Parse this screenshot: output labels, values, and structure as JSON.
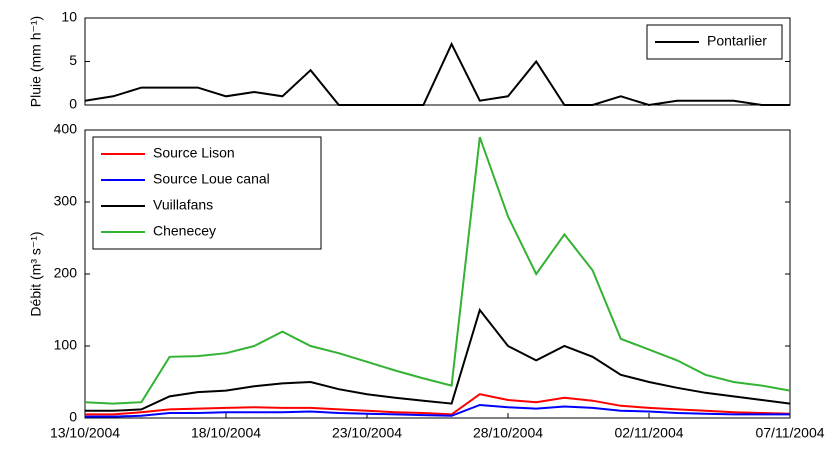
{
  "chart_data": [
    {
      "type": "line",
      "ylabel": "Pluie (mm h⁻¹)",
      "x": [
        "2004-10-13",
        "2004-10-14",
        "2004-10-15",
        "2004-10-16",
        "2004-10-17",
        "2004-10-18",
        "2004-10-19",
        "2004-10-20",
        "2004-10-21",
        "2004-10-22",
        "2004-10-23",
        "2004-10-24",
        "2004-10-25",
        "2004-10-26",
        "2004-10-27",
        "2004-10-28",
        "2004-10-29",
        "2004-10-30",
        "2004-10-31",
        "2004-11-01",
        "2004-11-02",
        "2004-11-03",
        "2004-11-04",
        "2004-11-05",
        "2004-11-06",
        "2004-11-07"
      ],
      "series": [
        {
          "name": "Pontarlier",
          "color": "#000000",
          "values": [
            0.5,
            1,
            2,
            2,
            2,
            1,
            1.5,
            1,
            4,
            0,
            0,
            0,
            0,
            7,
            0.5,
            1,
            5,
            0,
            0,
            1,
            0,
            0.5,
            0.5,
            0.5,
            0,
            0
          ]
        }
      ],
      "xlim": [
        "2004-10-13",
        "2004-11-07"
      ],
      "ylim": [
        0,
        10
      ],
      "yticks": [
        0,
        5,
        10
      ],
      "legend": "upper right"
    },
    {
      "type": "line",
      "ylabel": "Débit (m³ s⁻¹)",
      "x": [
        "2004-10-13",
        "2004-10-14",
        "2004-10-15",
        "2004-10-16",
        "2004-10-17",
        "2004-10-18",
        "2004-10-19",
        "2004-10-20",
        "2004-10-21",
        "2004-10-22",
        "2004-10-23",
        "2004-10-24",
        "2004-10-25",
        "2004-10-26",
        "2004-10-27",
        "2004-10-28",
        "2004-10-29",
        "2004-10-30",
        "2004-10-31",
        "2004-11-01",
        "2004-11-02",
        "2004-11-03",
        "2004-11-04",
        "2004-11-05",
        "2004-11-06",
        "2004-11-07"
      ],
      "series": [
        {
          "name": "Source Lison",
          "color": "#ff0000",
          "values": [
            5,
            5,
            8,
            12,
            13,
            14,
            15,
            14,
            14,
            12,
            10,
            8,
            7,
            5,
            33,
            25,
            22,
            28,
            24,
            17,
            14,
            12,
            10,
            8,
            7,
            6
          ]
        },
        {
          "name": "Source Loue canal",
          "color": "#0000ff",
          "values": [
            2,
            2,
            3,
            7,
            7,
            8,
            8,
            8,
            9,
            7,
            6,
            5,
            4,
            3,
            18,
            15,
            13,
            16,
            14,
            10,
            9,
            7,
            6,
            5,
            5,
            5
          ]
        },
        {
          "name": "Vuillafans",
          "color": "#000000",
          "values": [
            10,
            10,
            12,
            30,
            36,
            38,
            44,
            48,
            50,
            40,
            33,
            28,
            24,
            20,
            150,
            100,
            80,
            100,
            85,
            60,
            50,
            42,
            35,
            30,
            25,
            20
          ]
        },
        {
          "name": "Chenecey",
          "color": "#33b233",
          "values": [
            22,
            20,
            22,
            85,
            86,
            90,
            100,
            120,
            100,
            90,
            78,
            66,
            55,
            45,
            390,
            280,
            200,
            255,
            205,
            110,
            95,
            80,
            60,
            50,
            45,
            38
          ]
        }
      ],
      "xlim": [
        "2004-10-13",
        "2004-11-07"
      ],
      "ylim": [
        0,
        400
      ],
      "yticks": [
        0,
        100,
        200,
        300,
        400
      ],
      "xticks": [
        {
          "value": "2004-10-13",
          "label": "13/10/2004"
        },
        {
          "value": "2004-10-18",
          "label": "18/10/2004"
        },
        {
          "value": "2004-10-23",
          "label": "23/10/2004"
        },
        {
          "value": "2004-10-28",
          "label": "28/10/2004"
        },
        {
          "value": "2004-11-02",
          "label": "02/11/2004"
        },
        {
          "value": "2004-11-07",
          "label": "07/11/2004"
        }
      ],
      "legend": "upper left"
    }
  ]
}
